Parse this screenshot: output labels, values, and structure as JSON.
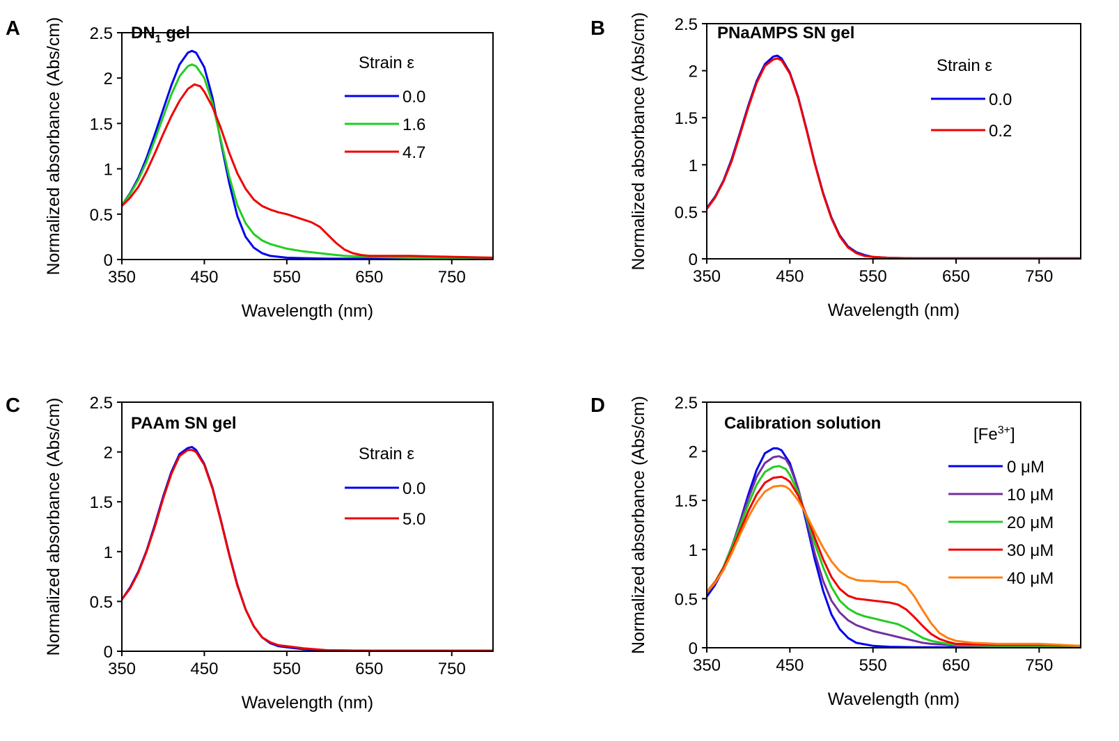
{
  "chart_data": [
    {
      "panel": "A",
      "type": "line",
      "title": "DN",
      "title_sub": "1",
      "title_suffix": " gel",
      "xlabel": "Wavelength (nm)",
      "ylabel": "Normalized absorbance (Abs/cm)",
      "xlim": [
        350,
        800
      ],
      "ylim": [
        0,
        2.5
      ],
      "xticks": [
        "350",
        "450",
        "550",
        "650",
        "750"
      ],
      "yticks": [
        "0",
        "0.5",
        "1",
        "1.5",
        "2",
        "2.5"
      ],
      "legend_title": "Strain ε",
      "series": [
        {
          "name": "0.0",
          "color": "#0000ee",
          "x": [
            350,
            360,
            370,
            380,
            390,
            400,
            410,
            420,
            430,
            435,
            440,
            450,
            460,
            470,
            480,
            490,
            500,
            510,
            520,
            530,
            550,
            570,
            600,
            650,
            700,
            750,
            800
          ],
          "y": [
            0.6,
            0.73,
            0.9,
            1.12,
            1.38,
            1.65,
            1.92,
            2.15,
            2.28,
            2.3,
            2.28,
            2.12,
            1.78,
            1.3,
            0.85,
            0.48,
            0.25,
            0.13,
            0.07,
            0.04,
            0.02,
            0.015,
            0.01,
            0.01,
            0.01,
            0.01,
            0.01
          ]
        },
        {
          "name": "1.6",
          "color": "#22cc22",
          "x": [
            350,
            360,
            370,
            380,
            390,
            400,
            410,
            420,
            430,
            435,
            440,
            450,
            460,
            470,
            480,
            490,
            500,
            510,
            520,
            530,
            550,
            570,
            600,
            620,
            650,
            700,
            750,
            800
          ],
          "y": [
            0.6,
            0.72,
            0.88,
            1.08,
            1.32,
            1.57,
            1.82,
            2.02,
            2.13,
            2.15,
            2.13,
            2.0,
            1.72,
            1.32,
            0.92,
            0.6,
            0.4,
            0.28,
            0.21,
            0.17,
            0.12,
            0.09,
            0.06,
            0.04,
            0.03,
            0.02,
            0.02,
            0.02
          ]
        },
        {
          "name": "4.7",
          "color": "#ee0000",
          "x": [
            350,
            360,
            370,
            380,
            390,
            400,
            410,
            420,
            430,
            438,
            445,
            450,
            460,
            470,
            480,
            490,
            500,
            510,
            520,
            530,
            540,
            550,
            560,
            570,
            580,
            590,
            600,
            610,
            620,
            630,
            640,
            650,
            700,
            750,
            800
          ],
          "y": [
            0.59,
            0.68,
            0.8,
            0.97,
            1.17,
            1.38,
            1.58,
            1.75,
            1.88,
            1.93,
            1.91,
            1.85,
            1.68,
            1.45,
            1.18,
            0.95,
            0.78,
            0.66,
            0.59,
            0.55,
            0.52,
            0.5,
            0.47,
            0.44,
            0.41,
            0.36,
            0.27,
            0.18,
            0.11,
            0.07,
            0.05,
            0.04,
            0.04,
            0.03,
            0.02
          ]
        }
      ]
    },
    {
      "panel": "B",
      "type": "line",
      "title": "PNaAMPS SN gel",
      "xlabel": "Wavelength (nm)",
      "ylabel": "Normalized absorbance (Abs/cm)",
      "xlim": [
        350,
        800
      ],
      "ylim": [
        0,
        2.5
      ],
      "xticks": [
        "350",
        "450",
        "550",
        "650",
        "750"
      ],
      "yticks": [
        "0",
        "0.5",
        "1",
        "1.5",
        "2",
        "2.5"
      ],
      "legend_title": "Strain ε",
      "series": [
        {
          "name": "0.0",
          "color": "#0000ee",
          "x": [
            350,
            360,
            370,
            380,
            390,
            400,
            410,
            420,
            430,
            435,
            440,
            450,
            460,
            470,
            480,
            490,
            500,
            510,
            520,
            530,
            540,
            550,
            570,
            600,
            650,
            700,
            750,
            800
          ],
          "y": [
            0.54,
            0.66,
            0.83,
            1.06,
            1.34,
            1.63,
            1.89,
            2.07,
            2.15,
            2.16,
            2.13,
            1.98,
            1.72,
            1.38,
            1.02,
            0.7,
            0.44,
            0.25,
            0.13,
            0.07,
            0.04,
            0.02,
            0.01,
            0.005,
            0.005,
            0.005,
            0.005,
            0.005
          ]
        },
        {
          "name": "0.2",
          "color": "#ee0000",
          "x": [
            350,
            360,
            370,
            380,
            390,
            400,
            410,
            420,
            430,
            435,
            440,
            450,
            460,
            470,
            480,
            490,
            500,
            510,
            520,
            530,
            540,
            550,
            570,
            600,
            650,
            700,
            750,
            800
          ],
          "y": [
            0.53,
            0.65,
            0.82,
            1.04,
            1.32,
            1.61,
            1.87,
            2.05,
            2.12,
            2.13,
            2.11,
            1.97,
            1.71,
            1.37,
            1.01,
            0.69,
            0.43,
            0.24,
            0.12,
            0.06,
            0.03,
            0.02,
            0.01,
            0.005,
            0.005,
            0.005,
            0.005,
            0.005
          ]
        }
      ]
    },
    {
      "panel": "C",
      "type": "line",
      "title": "PAAm SN gel",
      "xlabel": "Wavelength (nm)",
      "ylabel": "Normalized absorbance (Abs/cm)",
      "xlim": [
        350,
        800
      ],
      "ylim": [
        0,
        2.5
      ],
      "xticks": [
        "350",
        "450",
        "550",
        "650",
        "750"
      ],
      "yticks": [
        "0",
        "0.5",
        "1",
        "1.5",
        "2",
        "2.5"
      ],
      "legend_title": "Strain ε",
      "series": [
        {
          "name": "0.0",
          "color": "#0000ee",
          "x": [
            350,
            360,
            370,
            380,
            390,
            400,
            410,
            420,
            430,
            435,
            440,
            450,
            460,
            470,
            480,
            490,
            500,
            510,
            520,
            530,
            540,
            550,
            570,
            600,
            650,
            700,
            750,
            800
          ],
          "y": [
            0.52,
            0.64,
            0.8,
            1.01,
            1.27,
            1.55,
            1.8,
            1.98,
            2.04,
            2.05,
            2.02,
            1.88,
            1.64,
            1.32,
            0.98,
            0.67,
            0.42,
            0.25,
            0.14,
            0.08,
            0.05,
            0.04,
            0.02,
            0.01,
            0.005,
            0.005,
            0.005,
            0.005
          ]
        },
        {
          "name": "5.0",
          "color": "#ee0000",
          "x": [
            350,
            360,
            370,
            380,
            390,
            400,
            410,
            420,
            430,
            435,
            440,
            450,
            460,
            470,
            480,
            490,
            500,
            510,
            520,
            530,
            540,
            550,
            570,
            600,
            650,
            700,
            750,
            800
          ],
          "y": [
            0.52,
            0.63,
            0.79,
            1.0,
            1.25,
            1.53,
            1.78,
            1.96,
            2.02,
            2.02,
            2.0,
            1.87,
            1.63,
            1.31,
            0.97,
            0.66,
            0.42,
            0.25,
            0.14,
            0.09,
            0.06,
            0.05,
            0.03,
            0.01,
            0.005,
            0.005,
            0.005,
            0.005
          ]
        }
      ]
    },
    {
      "panel": "D",
      "type": "line",
      "title": "Calibration solution",
      "xlabel": "Wavelength (nm)",
      "ylabel": "Normalized absorbance (Abs/cm)",
      "xlim": [
        350,
        800
      ],
      "ylim": [
        0,
        2.5
      ],
      "xticks": [
        "350",
        "450",
        "550",
        "650",
        "750"
      ],
      "yticks": [
        "0",
        "0.5",
        "1",
        "1.5",
        "2",
        "2.5"
      ],
      "legend_title": "[Fe",
      "legend_title_sup": "3+",
      "legend_title_suffix": "]",
      "series": [
        {
          "name": "0 μM",
          "color": "#0000ee",
          "x": [
            350,
            360,
            370,
            380,
            390,
            400,
            410,
            420,
            430,
            435,
            440,
            450,
            460,
            470,
            480,
            490,
            500,
            510,
            520,
            530,
            550,
            570,
            600,
            650,
            700,
            750,
            800
          ],
          "y": [
            0.52,
            0.64,
            0.8,
            1.02,
            1.28,
            1.56,
            1.81,
            1.98,
            2.03,
            2.03,
            2.01,
            1.88,
            1.62,
            1.27,
            0.9,
            0.58,
            0.34,
            0.19,
            0.1,
            0.05,
            0.02,
            0.01,
            0.005,
            0.005,
            0.005,
            0.005,
            0.005
          ]
        },
        {
          "name": "10 μM",
          "color": "#7030a0",
          "x": [
            350,
            360,
            370,
            380,
            390,
            400,
            410,
            420,
            430,
            437,
            445,
            450,
            460,
            470,
            480,
            490,
            500,
            510,
            520,
            530,
            540,
            550,
            560,
            570,
            580,
            590,
            600,
            610,
            620,
            640,
            650,
            700,
            750,
            800
          ],
          "y": [
            0.55,
            0.66,
            0.82,
            1.03,
            1.27,
            1.52,
            1.74,
            1.88,
            1.94,
            1.95,
            1.92,
            1.85,
            1.62,
            1.3,
            0.96,
            0.68,
            0.48,
            0.36,
            0.28,
            0.23,
            0.2,
            0.17,
            0.15,
            0.13,
            0.11,
            0.09,
            0.07,
            0.05,
            0.04,
            0.03,
            0.02,
            0.01,
            0.01,
            0.005
          ]
        },
        {
          "name": "20 μM",
          "color": "#22cc22",
          "x": [
            350,
            360,
            370,
            380,
            390,
            400,
            410,
            420,
            430,
            437,
            445,
            450,
            460,
            470,
            480,
            490,
            500,
            510,
            520,
            530,
            540,
            550,
            560,
            570,
            580,
            590,
            600,
            610,
            620,
            640,
            650,
            700,
            750,
            800
          ],
          "y": [
            0.56,
            0.67,
            0.82,
            1.02,
            1.24,
            1.46,
            1.66,
            1.79,
            1.84,
            1.85,
            1.82,
            1.76,
            1.58,
            1.33,
            1.06,
            0.82,
            0.62,
            0.48,
            0.4,
            0.35,
            0.32,
            0.3,
            0.28,
            0.26,
            0.24,
            0.2,
            0.15,
            0.1,
            0.07,
            0.04,
            0.03,
            0.02,
            0.02,
            0.01
          ]
        },
        {
          "name": "30 μM",
          "color": "#ee0000",
          "x": [
            350,
            360,
            370,
            380,
            390,
            400,
            410,
            420,
            430,
            440,
            445,
            450,
            460,
            470,
            480,
            490,
            500,
            510,
            520,
            530,
            540,
            550,
            560,
            570,
            580,
            590,
            600,
            610,
            620,
            630,
            640,
            650,
            700,
            750,
            800
          ],
          "y": [
            0.57,
            0.67,
            0.81,
            0.99,
            1.19,
            1.39,
            1.56,
            1.68,
            1.73,
            1.74,
            1.72,
            1.69,
            1.55,
            1.35,
            1.12,
            0.9,
            0.72,
            0.6,
            0.53,
            0.5,
            0.49,
            0.48,
            0.47,
            0.46,
            0.44,
            0.39,
            0.31,
            0.22,
            0.14,
            0.09,
            0.06,
            0.04,
            0.03,
            0.03,
            0.02
          ]
        },
        {
          "name": "40 μM",
          "color": "#ff7f0e",
          "x": [
            350,
            360,
            370,
            380,
            390,
            400,
            410,
            420,
            430,
            440,
            445,
            450,
            460,
            470,
            480,
            490,
            500,
            510,
            520,
            530,
            540,
            550,
            560,
            570,
            580,
            590,
            600,
            610,
            620,
            630,
            640,
            650,
            670,
            700,
            750,
            800
          ],
          "y": [
            0.57,
            0.66,
            0.79,
            0.96,
            1.15,
            1.33,
            1.48,
            1.59,
            1.64,
            1.65,
            1.64,
            1.61,
            1.5,
            1.35,
            1.18,
            1.02,
            0.88,
            0.78,
            0.72,
            0.69,
            0.68,
            0.68,
            0.67,
            0.67,
            0.67,
            0.63,
            0.52,
            0.38,
            0.25,
            0.15,
            0.1,
            0.07,
            0.05,
            0.04,
            0.04,
            0.02
          ]
        }
      ]
    }
  ]
}
